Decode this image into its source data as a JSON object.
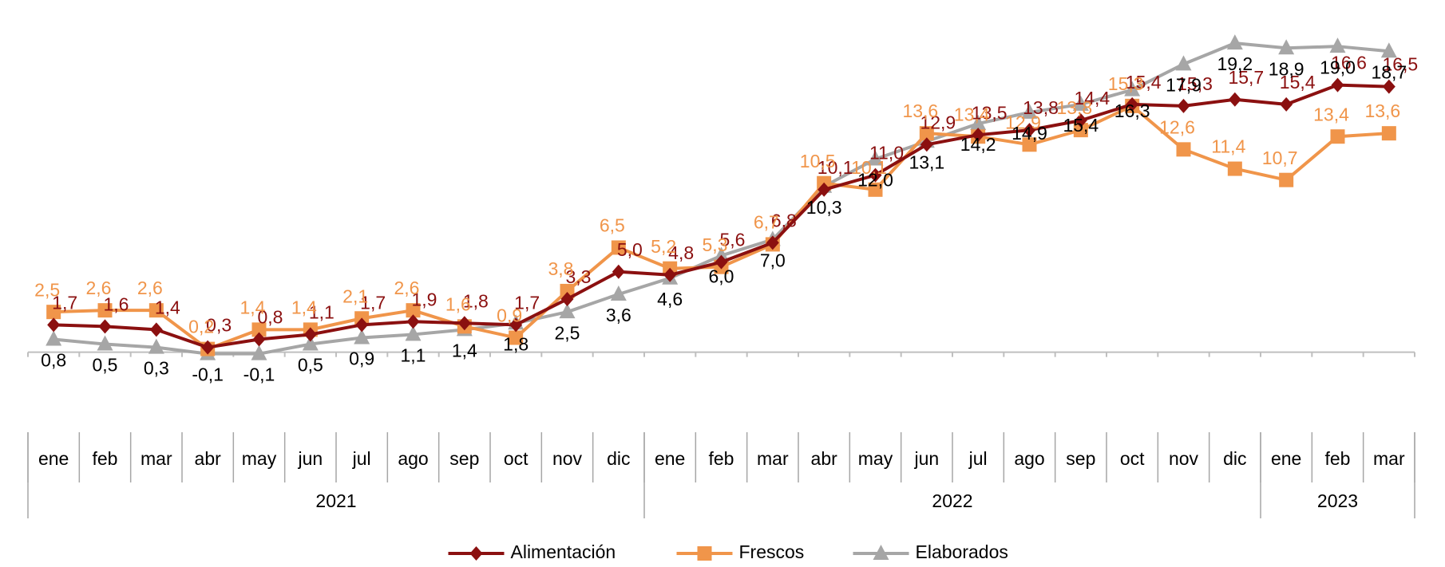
{
  "chart_data": {
    "type": "line",
    "categories": [
      "ene",
      "feb",
      "mar",
      "abr",
      "may",
      "jun",
      "jul",
      "ago",
      "sep",
      "oct",
      "nov",
      "dic",
      "ene",
      "feb",
      "mar",
      "abr",
      "may",
      "jun",
      "jul",
      "ago",
      "sep",
      "oct",
      "nov",
      "dic",
      "ene",
      "feb",
      "mar"
    ],
    "category_groups": [
      {
        "label": "2021",
        "span": 12
      },
      {
        "label": "2022",
        "span": 12
      },
      {
        "label": "2023",
        "span": 3
      }
    ],
    "series": [
      {
        "name": "Alimentación",
        "color": "#8b1010",
        "marker": "diamond",
        "values": [
          1.7,
          1.6,
          1.4,
          0.3,
          0.8,
          1.1,
          1.7,
          1.9,
          1.8,
          1.7,
          3.3,
          5.0,
          4.8,
          5.6,
          6.8,
          10.1,
          11.0,
          12.9,
          13.5,
          13.8,
          14.4,
          15.4,
          15.3,
          15.7,
          15.4,
          16.6,
          16.5
        ],
        "value_labels": [
          "1,7",
          "1,6",
          "1,4",
          "0,3",
          "0,8",
          "1,1",
          "1,7",
          "1,9",
          "1,8",
          "1,7",
          "3,3",
          "5,0",
          "4,8",
          "5,6",
          "6,8",
          "10,1",
          "11,0",
          "12,9",
          "13,5",
          "13,8",
          "14,4",
          "15,4",
          "15,3",
          "15,7",
          "15,4",
          "16,6",
          "16,5"
        ]
      },
      {
        "name": "Frescos",
        "color": "#f0954a",
        "marker": "square",
        "values": [
          2.5,
          2.6,
          2.6,
          0.2,
          1.4,
          1.4,
          2.1,
          2.6,
          1.6,
          0.9,
          3.8,
          6.5,
          5.2,
          5.3,
          6.7,
          10.5,
          10.1,
          13.6,
          13.4,
          12.9,
          13.8,
          15.3,
          12.6,
          11.4,
          10.7,
          13.4,
          13.6
        ],
        "value_labels": [
          "2,5",
          "2,6",
          "2,6",
          "0,2",
          "1,4",
          "1,4",
          "2,1",
          "2,6",
          "1,6",
          "0,9",
          "3,8",
          "6,5",
          "5,2",
          "5,3",
          "6,7",
          "10,5",
          "10,1",
          "13,6",
          "13,4",
          "12,9",
          "13,8",
          "15,3",
          "12,6",
          "11,4",
          "10,7",
          "13,4",
          "13,6"
        ]
      },
      {
        "name": "Elaborados",
        "color": "#a6a6a6",
        "marker": "triangle",
        "values": [
          0.8,
          0.5,
          0.3,
          -0.1,
          -0.1,
          0.5,
          0.9,
          1.1,
          1.4,
          1.8,
          2.5,
          3.6,
          4.6,
          6.0,
          7.0,
          10.3,
          12.0,
          13.1,
          14.2,
          14.9,
          15.4,
          16.3,
          17.9,
          19.2,
          18.9,
          19.0,
          18.7
        ],
        "value_labels": [
          "0,8",
          "0,5",
          "0,3",
          "-0,1",
          "-0,1",
          "0,5",
          "0,9",
          "1,1",
          "1,4",
          "1,8",
          "2,5",
          "3,6",
          "4,6",
          "6,0",
          "7,0",
          "10,3",
          "12,0",
          "13,1",
          "14,2",
          "14,9",
          "15,4",
          "16,3",
          "17,9",
          "19,2",
          "18,9",
          "19,0",
          "18,7"
        ]
      }
    ],
    "ylim": [
      -2,
      20
    ],
    "legend": "bottom"
  }
}
